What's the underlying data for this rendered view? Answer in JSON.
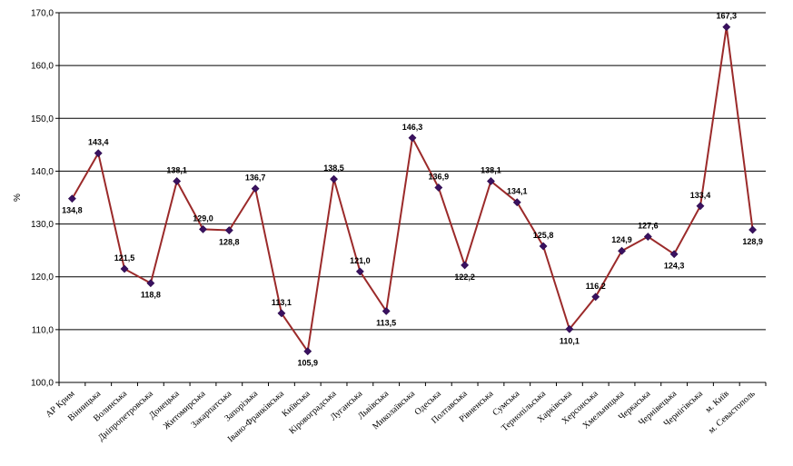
{
  "chart_data": {
    "type": "line",
    "title": "",
    "xlabel": "",
    "ylabel": "%",
    "ylim": [
      100,
      170
    ],
    "yticks": [
      "100,0",
      "110,0",
      "120,0",
      "130,0",
      "140,0",
      "150,0",
      "160,0",
      "170,0"
    ],
    "grid": "horizontal",
    "legend": "none",
    "categories": [
      "АР Крим",
      "Вінницька",
      "Волинська",
      "Дніпропетровська",
      "Донецька",
      "Житомирська",
      "Закарпатська",
      "Запорізька",
      "Івано-Франківська",
      "Київська",
      "Кіровоградська",
      "Луганська",
      "Львівська",
      "Миколаївська",
      "Одеська",
      "Полтавська",
      "Рівненська",
      "Сумська",
      "Тернопільська",
      "Харківська",
      "Херсонська",
      "Хмельницька",
      "Черкаська",
      "Чернівецька",
      "Чернігівська",
      "м. Київ",
      "м. Севастополь"
    ],
    "values": [
      134.8,
      143.4,
      121.5,
      118.8,
      138.1,
      129.0,
      128.8,
      136.7,
      113.1,
      105.9,
      138.5,
      121.0,
      113.5,
      146.3,
      136.9,
      122.2,
      138.1,
      134.1,
      125.8,
      110.1,
      116.2,
      124.9,
      127.6,
      124.3,
      133.4,
      167.3,
      128.9
    ],
    "value_labels": [
      "134,8",
      "143,4",
      "121,5",
      "118,8",
      "138,1",
      "129,0",
      "128,8",
      "136,7",
      "113,1",
      "105,9",
      "138,5",
      "121,0",
      "113,5",
      "146,3",
      "136,9",
      "122,2",
      "138,1",
      "134,1",
      "125,8",
      "110,1",
      "116,2",
      "124,9",
      "127,6",
      "124,3",
      "133,4",
      "167,3",
      "128,9"
    ],
    "colors": {
      "line": "#9b2a2a",
      "marker": "#3a1160"
    }
  }
}
